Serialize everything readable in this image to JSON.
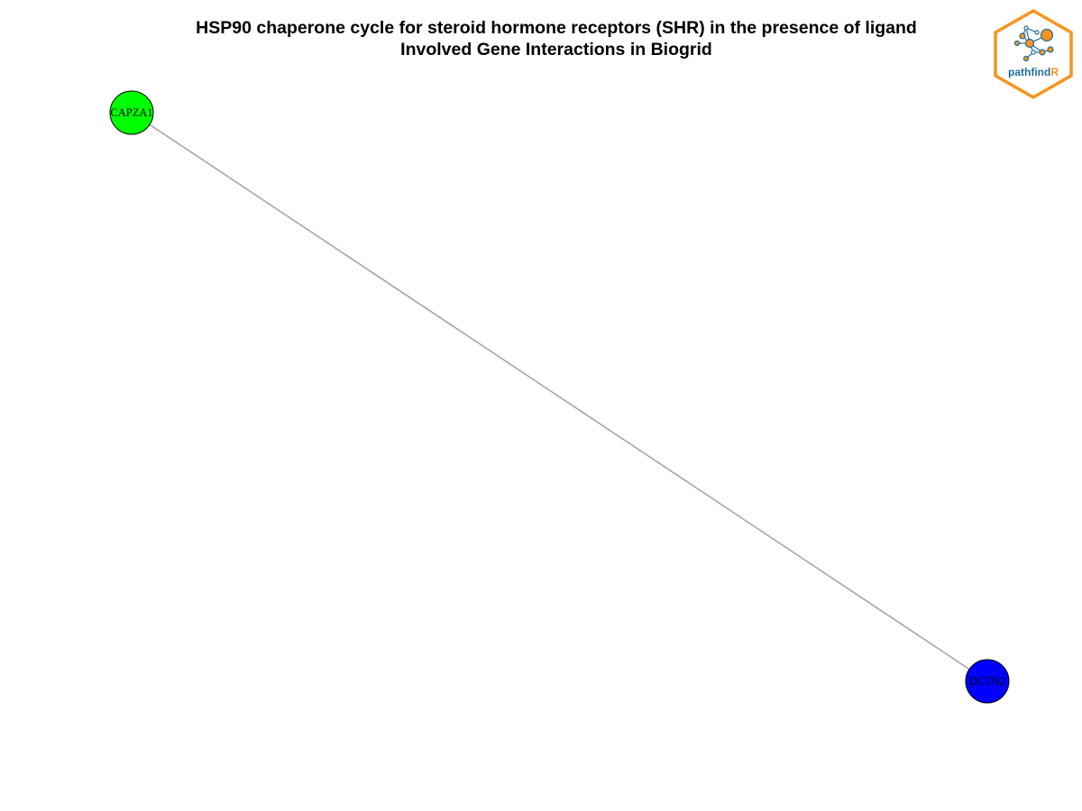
{
  "title": {
    "line1": "HSP90 chaperone cycle for steroid hormone receptors (SHR) in the presence of ligand",
    "line2": "Involved Gene Interactions in Biogrid"
  },
  "logo": {
    "text_main": "pathfind",
    "text_accent": "R",
    "border_color": "#f7941d",
    "text_color": "#1f6e9a",
    "accent_color": "#f7941d"
  },
  "network": {
    "nodes": [
      {
        "id": "CAPZA1",
        "label": "CAPZA1",
        "fill": "#00ff00"
      },
      {
        "id": "DCTN2",
        "label": "DCTN2",
        "fill": "#0000ff"
      }
    ],
    "edges": [
      {
        "source": "CAPZA1",
        "target": "DCTN2",
        "color": "#a6a6a6"
      }
    ]
  }
}
